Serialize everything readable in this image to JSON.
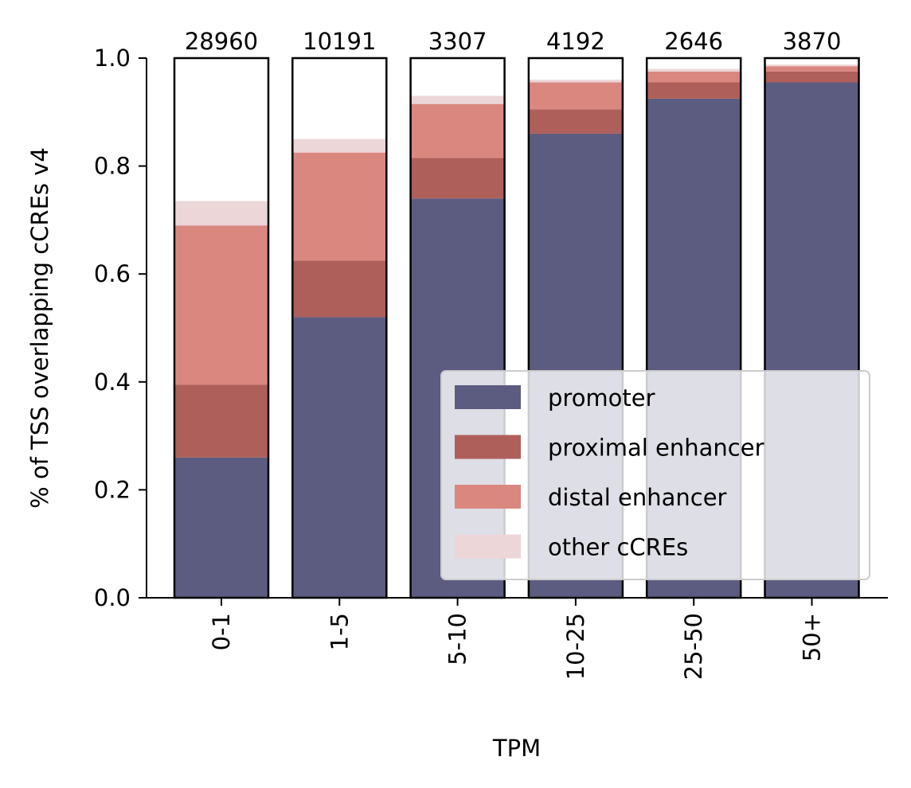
{
  "chart_data": {
    "type": "bar",
    "stacked": true,
    "xlabel": "TPM",
    "ylabel": "% of TSS overlapping cCREs v4",
    "ylim": [
      0,
      1.0
    ],
    "yticks": [
      "0.0",
      "0.2",
      "0.4",
      "0.6",
      "0.8",
      "1.0"
    ],
    "categories": [
      "0-1",
      "1-5",
      "5-10",
      "10-25",
      "25-50",
      "50+"
    ],
    "counts": [
      "28960",
      "10191",
      "3307",
      "4192",
      "2646",
      "3870"
    ],
    "series": [
      {
        "name": "promoter",
        "color": "#5c5c80",
        "values": [
          0.26,
          0.52,
          0.74,
          0.86,
          0.925,
          0.955
        ]
      },
      {
        "name": "proximal enhancer",
        "color": "#ae5f5a",
        "values": [
          0.135,
          0.105,
          0.075,
          0.045,
          0.03,
          0.02
        ]
      },
      {
        "name": "distal enhancer",
        "color": "#da8780",
        "values": [
          0.295,
          0.2,
          0.1,
          0.05,
          0.02,
          0.01
        ]
      },
      {
        "name": "other cCREs",
        "color": "#ecd6d8",
        "values": [
          0.045,
          0.025,
          0.015,
          0.005,
          0.005,
          0.003
        ]
      }
    ],
    "legend": "lower-right",
    "grid": false
  }
}
